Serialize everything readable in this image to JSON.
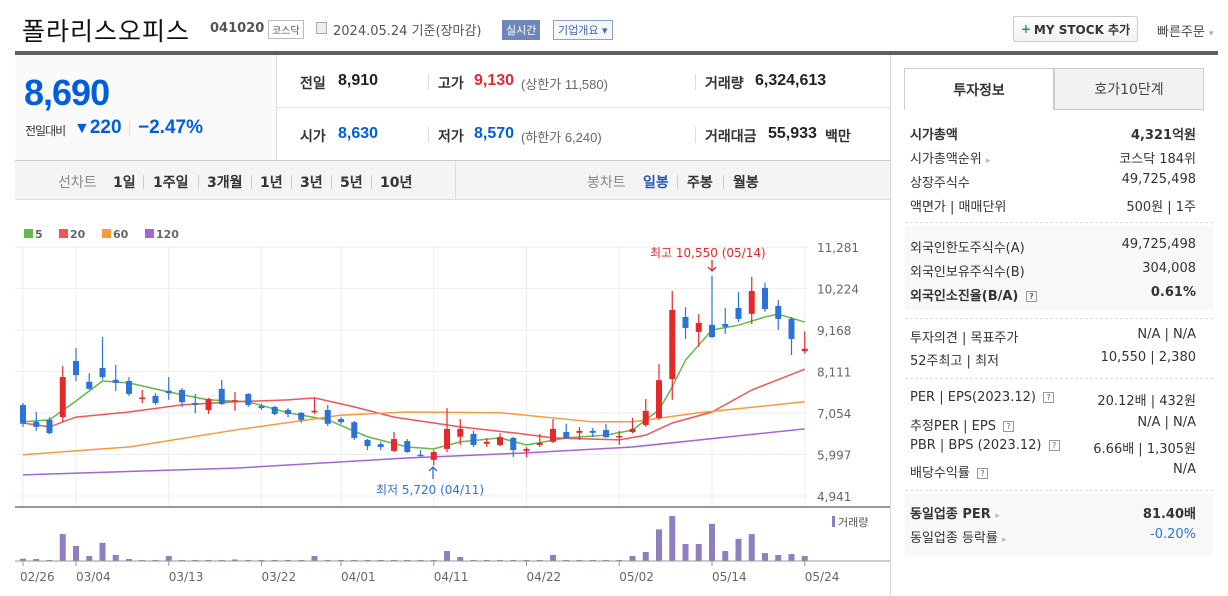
{
  "header": {
    "company": "폴라리스오피스",
    "code": "041020",
    "market": "코스닥",
    "date_text": "2024.05.24 기준(장마감)",
    "realtime_badge": "실시간",
    "company_overview": "기업개요 ▾",
    "mystock_plus": "+",
    "mystock_label": "MY STOCK 추가",
    "quick_order": "빠른주문",
    "quick_order_caret": "▾"
  },
  "quote": {
    "price": "8,690",
    "change_label": "전일대비",
    "change_arrow": "▼",
    "change": "220",
    "change_pct": "−2.47%",
    "prev_label": "전일",
    "prev": "8,910",
    "high_label": "고가",
    "high": "9,130",
    "upper_limit": "(상한가 11,580)",
    "volume_label": "거래량",
    "volume": "6,324,613",
    "open_label": "시가",
    "open": "8,630",
    "low_label": "저가",
    "low": "8,570",
    "lower_limit": "(하한가 6,240)",
    "amount_label": "거래대금",
    "amount": "55,933",
    "amount_unit": "백만"
  },
  "chart_tabs": {
    "line_label": "선차트",
    "line_periods": [
      "1일",
      "1주일",
      "3개월",
      "1년",
      "3년",
      "5년",
      "10년"
    ],
    "candle_label": "봉차트",
    "candle_periods": [
      "일봉",
      "주봉",
      "월봉"
    ],
    "active_candle": "일봉"
  },
  "colors": {
    "up": "#e5282a",
    "down": "#2c73d8",
    "volume": "#8f7fc0",
    "accent": "#005dde"
  },
  "chart_data": {
    "type": "candlestick",
    "y_ticks": [
      "11,281",
      "10,224",
      "9,168",
      "8,111",
      "7,054",
      "5,997",
      "4,941"
    ],
    "ylim": [
      4941,
      11281
    ],
    "x_ticks": [
      "02/26",
      "03/04",
      "03/13",
      "03/22",
      "04/01",
      "04/11",
      "04/22",
      "05/02",
      "05/14",
      "05/24"
    ],
    "grid": true,
    "volume_legend": "거래량",
    "annotations": {
      "high": "최고 10,550 (05/14)",
      "low": "최저 5,720 (04/11)"
    },
    "candle_fields": [
      "date",
      "open",
      "high",
      "low",
      "close",
      "volume"
    ],
    "candles": [
      [
        "02/26",
        7260,
        7310,
        6700,
        6780,
        2900000
      ],
      [
        "02/27",
        6830,
        7080,
        6600,
        6700,
        2500000
      ],
      [
        "02/28",
        6880,
        6950,
        6520,
        6540,
        1300000
      ],
      [
        "02/29",
        6950,
        8250,
        6820,
        7970,
        34000000
      ],
      [
        "03/04",
        8380,
        8710,
        7870,
        8020,
        19000000
      ],
      [
        "03/05",
        7850,
        8070,
        7650,
        7670,
        6300000
      ],
      [
        "03/06",
        8200,
        8990,
        7900,
        7970,
        23000000
      ],
      [
        "03/07",
        7900,
        8280,
        7610,
        7820,
        7600000
      ],
      [
        "03/08",
        7870,
        7970,
        7490,
        7540,
        2500000
      ],
      [
        "03/11",
        7420,
        7640,
        7310,
        7450,
        1300000
      ],
      [
        "03/12",
        7490,
        7560,
        7260,
        7310,
        1300000
      ],
      [
        "03/13",
        7620,
        7970,
        7390,
        7560,
        6300000
      ],
      [
        "03/14",
        7640,
        7690,
        7210,
        7330,
        1300000
      ],
      [
        "03/15",
        7310,
        7540,
        7050,
        7260,
        1300000
      ],
      [
        "03/18",
        7130,
        7440,
        7030,
        7410,
        1300000
      ],
      [
        "03/19",
        7670,
        7900,
        7260,
        7280,
        1300000
      ],
      [
        "03/20",
        7360,
        7590,
        7110,
        7380,
        1900000
      ],
      [
        "03/21",
        7540,
        7560,
        7210,
        7260,
        1300000
      ],
      [
        "03/22",
        7230,
        7290,
        7130,
        7180,
        1300000
      ],
      [
        "03/25",
        7210,
        7230,
        7000,
        7030,
        1300000
      ],
      [
        "03/26",
        7130,
        7180,
        6950,
        7030,
        1300000
      ],
      [
        "03/27",
        7060,
        7080,
        6800,
        6880,
        1300000
      ],
      [
        "03/28",
        7080,
        7440,
        7030,
        7110,
        6300000
      ],
      [
        "03/29",
        7130,
        7260,
        6720,
        6780,
        1300000
      ],
      [
        "04/01",
        6900,
        6950,
        6770,
        6820,
        1300000
      ],
      [
        "04/02",
        6820,
        6850,
        6370,
        6420,
        1300000
      ],
      [
        "04/03",
        6370,
        6390,
        6110,
        6210,
        1300000
      ],
      [
        "04/04",
        6260,
        6320,
        6110,
        6190,
        1300000
      ],
      [
        "04/05",
        6090,
        6570,
        6060,
        6390,
        1300000
      ],
      [
        "04/08",
        6340,
        6390,
        6040,
        6060,
        1300000
      ],
      [
        "04/09",
        5990,
        6110,
        5970,
        5980,
        1300000
      ],
      [
        "04/11",
        5860,
        6110,
        5720,
        6060,
        1300000
      ],
      [
        "04/12",
        6140,
        7180,
        6060,
        6650,
        12600000
      ],
      [
        "04/15",
        6450,
        6900,
        6240,
        6650,
        5000000
      ],
      [
        "04/16",
        6520,
        6600,
        6190,
        6240,
        1300000
      ],
      [
        "04/17",
        6270,
        6420,
        6190,
        6320,
        1300000
      ],
      [
        "04/18",
        6240,
        6540,
        6210,
        6440,
        1300000
      ],
      [
        "04/19",
        6420,
        6450,
        5930,
        6110,
        1300000
      ],
      [
        "04/22",
        6090,
        6190,
        5930,
        6140,
        1300000
      ],
      [
        "04/23",
        6240,
        6520,
        6190,
        6290,
        1300000
      ],
      [
        "04/24",
        6320,
        6900,
        6290,
        6650,
        7600000
      ],
      [
        "04/25",
        6570,
        6780,
        6390,
        6420,
        1300000
      ],
      [
        "04/26",
        6550,
        6700,
        6370,
        6600,
        1300000
      ],
      [
        "04/29",
        6600,
        6670,
        6440,
        6550,
        1300000
      ],
      [
        "04/30",
        6620,
        6780,
        6420,
        6440,
        1300000
      ],
      [
        "05/02",
        6450,
        6600,
        6240,
        6470,
        1300000
      ],
      [
        "05/03",
        6570,
        6930,
        6540,
        6650,
        6300000
      ],
      [
        "05/07",
        6750,
        7410,
        6700,
        7110,
        11400000
      ],
      [
        "05/08",
        6930,
        8300,
        6880,
        7890,
        40000000
      ],
      [
        "05/09",
        7920,
        10160,
        7390,
        9680,
        57000000
      ],
      [
        "05/10",
        9500,
        9750,
        8940,
        9220,
        21500000
      ],
      [
        "05/13",
        9120,
        9570,
        8740,
        9350,
        21500000
      ],
      [
        "05/14",
        9300,
        10550,
        8960,
        8990,
        47000000
      ],
      [
        "05/16",
        9320,
        9730,
        9070,
        9250,
        12600000
      ],
      [
        "05/17",
        9730,
        10130,
        9370,
        9450,
        28000000
      ],
      [
        "05/20",
        9580,
        10520,
        9320,
        10160,
        34000000
      ],
      [
        "05/21",
        10240,
        10370,
        9630,
        9700,
        10000000
      ],
      [
        "05/22",
        9780,
        9930,
        9170,
        9450,
        7600000
      ],
      [
        "05/23",
        9450,
        9500,
        8530,
        8940,
        8800000
      ],
      [
        "05/24",
        8630,
        9130,
        8570,
        8690,
        6324613
      ]
    ],
    "moving_averages": [
      {
        "name": "5",
        "color": "#63b94a",
        "points": [
          [
            "02/26",
            6830
          ],
          [
            "02/28",
            6880
          ],
          [
            "03/04",
            7360
          ],
          [
            "03/06",
            7870
          ],
          [
            "03/08",
            7820
          ],
          [
            "03/13",
            7590
          ],
          [
            "03/18",
            7390
          ],
          [
            "03/21",
            7340
          ],
          [
            "03/26",
            7060
          ],
          [
            "03/29",
            6880
          ],
          [
            "04/03",
            6450
          ],
          [
            "04/08",
            6190
          ],
          [
            "04/11",
            6140
          ],
          [
            "04/15",
            6320
          ],
          [
            "04/18",
            6420
          ],
          [
            "04/22",
            6240
          ],
          [
            "04/25",
            6420
          ],
          [
            "04/30",
            6490
          ],
          [
            "05/03",
            6620
          ],
          [
            "05/07",
            6880
          ],
          [
            "05/08",
            7130
          ],
          [
            "05/09",
            7720
          ],
          [
            "05/10",
            8400
          ],
          [
            "05/14",
            9170
          ],
          [
            "05/17",
            9290
          ],
          [
            "05/21",
            9500
          ],
          [
            "05/22",
            9570
          ],
          [
            "05/24",
            9370
          ]
        ]
      },
      {
        "name": "20",
        "color": "#f0555a",
        "points": [
          [
            "02/26",
            6800
          ],
          [
            "02/28",
            6700
          ],
          [
            "03/04",
            6950
          ],
          [
            "03/08",
            7080
          ],
          [
            "03/14",
            7260
          ],
          [
            "03/20",
            7340
          ],
          [
            "03/26",
            7390
          ],
          [
            "03/28",
            7440
          ],
          [
            "04/02",
            7210
          ],
          [
            "04/05",
            6950
          ],
          [
            "04/11",
            6800
          ],
          [
            "04/15",
            6700
          ],
          [
            "04/19",
            6550
          ],
          [
            "04/24",
            6420
          ],
          [
            "05/02",
            6370
          ],
          [
            "05/07",
            6490
          ],
          [
            "05/09",
            6800
          ],
          [
            "05/14",
            7080
          ],
          [
            "05/20",
            7640
          ],
          [
            "05/24",
            8170
          ]
        ]
      },
      {
        "name": "60",
        "color": "#f89a3a",
        "points": [
          [
            "02/26",
            5990
          ],
          [
            "03/08",
            6190
          ],
          [
            "03/20",
            6620
          ],
          [
            "04/01",
            7000
          ],
          [
            "04/08",
            7080
          ],
          [
            "04/18",
            7060
          ],
          [
            "04/29",
            6830
          ],
          [
            "05/03",
            6830
          ],
          [
            "05/13",
            7060
          ],
          [
            "05/24",
            7340
          ]
        ]
      },
      {
        "name": "120",
        "color": "#a366d4",
        "points": [
          [
            "02/26",
            5480
          ],
          [
            "03/20",
            5650
          ],
          [
            "04/08",
            5910
          ],
          [
            "04/22",
            6040
          ],
          [
            "05/03",
            6190
          ],
          [
            "05/24",
            6650
          ]
        ]
      }
    ]
  },
  "invest": {
    "tabs": [
      "투자정보",
      "호가10단계"
    ],
    "active_tab": "투자정보",
    "rows1": [
      {
        "label": "시가총액",
        "value": "4,321억원",
        "bold": true
      },
      {
        "label": "시가총액순위",
        "value": "코스닥 184위",
        "arrow": true
      },
      {
        "label": "상장주식수",
        "value": "49,725,498"
      },
      {
        "label": "액면가 | 매매단위",
        "value": "500원 | 1주"
      }
    ],
    "rows2": [
      {
        "label": "외국인한도주식수(A)",
        "value": "49,725,498"
      },
      {
        "label": "외국인보유주식수(B)",
        "value": "304,008"
      },
      {
        "label": "외국인소진율(B/A)",
        "value": "0.61%",
        "bold": true,
        "help": true
      }
    ],
    "rows3": [
      {
        "label": "투자의견 | 목표주가",
        "value": "N/A | N/A"
      },
      {
        "label": "52주최고 | 최저",
        "value": "10,550 | 2,380"
      }
    ],
    "rows4": [
      {
        "label": "PER | EPS(2023.12)",
        "value": "20.12배 | 432원",
        "help": true
      },
      {
        "label": "추정PER | EPS",
        "value": "N/A | N/A",
        "help": true
      },
      {
        "label": "PBR | BPS (2023.12)",
        "value": "6.66배 | 1,305원",
        "help": true
      },
      {
        "label": "배당수익률",
        "value": "N/A",
        "help": true
      }
    ],
    "rows5": [
      {
        "label": "동일업종 PER",
        "value": "81.40배",
        "bold": true,
        "arrow": true
      },
      {
        "label": "동일업종 등락률",
        "value": "-0.20%",
        "arrow": true,
        "blue": true
      }
    ],
    "help_glyph": "?",
    "arrow_glyph": "▸"
  }
}
